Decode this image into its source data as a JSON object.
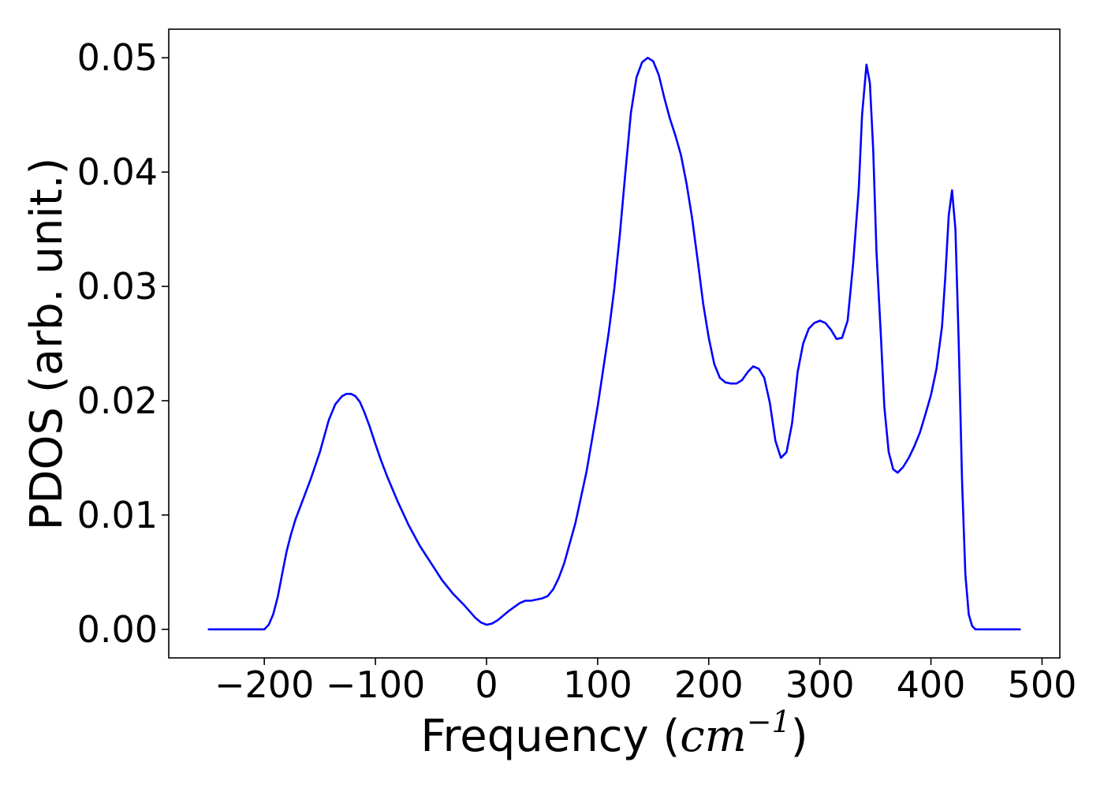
{
  "chart_data": {
    "type": "line",
    "title": "",
    "xlabel": "Frequency (cm⁻¹)",
    "xlabel_parts": {
      "prefix": "Frequency (",
      "unit_base": "cm",
      "unit_exponent": "−1",
      "suffix": ")"
    },
    "ylabel": "PDOS (arb. unit.)",
    "xlim": [
      -286,
      516
    ],
    "ylim": [
      -0.0025,
      0.0525
    ],
    "xticks": [
      -200,
      -100,
      0,
      100,
      200,
      300,
      400,
      500
    ],
    "xtick_labels": [
      "−200",
      "−100",
      "0",
      "100",
      "200",
      "300",
      "400",
      "500"
    ],
    "yticks": [
      0.0,
      0.01,
      0.02,
      0.03,
      0.04,
      0.05
    ],
    "ytick_labels": [
      "0.00",
      "0.01",
      "0.02",
      "0.03",
      "0.04",
      "0.05"
    ],
    "grid": false,
    "legend": "none",
    "colors": {
      "line": "#0000ff",
      "axes": "#000000",
      "background": "#ffffff"
    },
    "series": [
      {
        "x": [
          -250,
          -200,
          -196,
          -192,
          -188,
          -184,
          -180,
          -176,
          -172,
          -165,
          -158,
          -150,
          -142,
          -136,
          -130,
          -126,
          -122,
          -118,
          -114,
          -110,
          -105,
          -100,
          -95,
          -90,
          -80,
          -70,
          -60,
          -50,
          -40,
          -30,
          -20,
          -10,
          -5,
          0,
          5,
          10,
          20,
          30,
          35,
          40,
          50,
          55,
          60,
          65,
          70,
          80,
          90,
          100,
          110,
          115,
          120,
          125,
          130,
          135,
          140,
          145,
          150,
          155,
          160,
          165,
          170,
          175,
          180,
          185,
          190,
          195,
          200,
          205,
          210,
          215,
          220,
          225,
          230,
          235,
          240,
          245,
          250,
          255,
          260,
          265,
          270,
          275,
          280,
          285,
          290,
          295,
          300,
          305,
          310,
          315,
          320,
          325,
          330,
          335,
          338,
          342,
          345,
          348,
          351,
          355,
          358,
          362,
          366,
          370,
          375,
          380,
          385,
          390,
          395,
          400,
          405,
          410,
          413,
          416,
          419,
          422,
          425,
          428,
          431,
          434,
          437,
          440,
          445,
          450,
          460,
          480
        ],
        "y": [
          0.0,
          0.0,
          0.0004,
          0.0013,
          0.0028,
          0.0048,
          0.0068,
          0.0083,
          0.0096,
          0.0114,
          0.0132,
          0.0155,
          0.0183,
          0.0197,
          0.0204,
          0.0206,
          0.0206,
          0.0204,
          0.0199,
          0.019,
          0.0177,
          0.0162,
          0.0148,
          0.0135,
          0.0112,
          0.0091,
          0.0073,
          0.0058,
          0.0043,
          0.0031,
          0.0021,
          0.001,
          0.0006,
          0.0004,
          0.0005,
          0.0008,
          0.0016,
          0.0023,
          0.0025,
          0.0025,
          0.0027,
          0.0029,
          0.0035,
          0.0045,
          0.0058,
          0.0093,
          0.0138,
          0.0195,
          0.026,
          0.0298,
          0.0345,
          0.04,
          0.0452,
          0.0483,
          0.0496,
          0.05,
          0.0497,
          0.0485,
          0.0465,
          0.0447,
          0.0432,
          0.0415,
          0.039,
          0.036,
          0.0323,
          0.0285,
          0.0255,
          0.0232,
          0.022,
          0.0216,
          0.0215,
          0.0215,
          0.0218,
          0.0225,
          0.023,
          0.0228,
          0.022,
          0.0198,
          0.0165,
          0.015,
          0.0155,
          0.018,
          0.0225,
          0.025,
          0.0263,
          0.0268,
          0.027,
          0.0268,
          0.0262,
          0.0254,
          0.0255,
          0.027,
          0.032,
          0.0385,
          0.045,
          0.0494,
          0.0478,
          0.042,
          0.033,
          0.0255,
          0.0195,
          0.0155,
          0.014,
          0.0137,
          0.0142,
          0.015,
          0.016,
          0.0172,
          0.0188,
          0.0205,
          0.0228,
          0.0265,
          0.031,
          0.0362,
          0.0384,
          0.035,
          0.025,
          0.013,
          0.0048,
          0.0013,
          0.0003,
          0.0,
          0.0,
          0.0,
          0.0,
          0.0
        ]
      }
    ]
  }
}
